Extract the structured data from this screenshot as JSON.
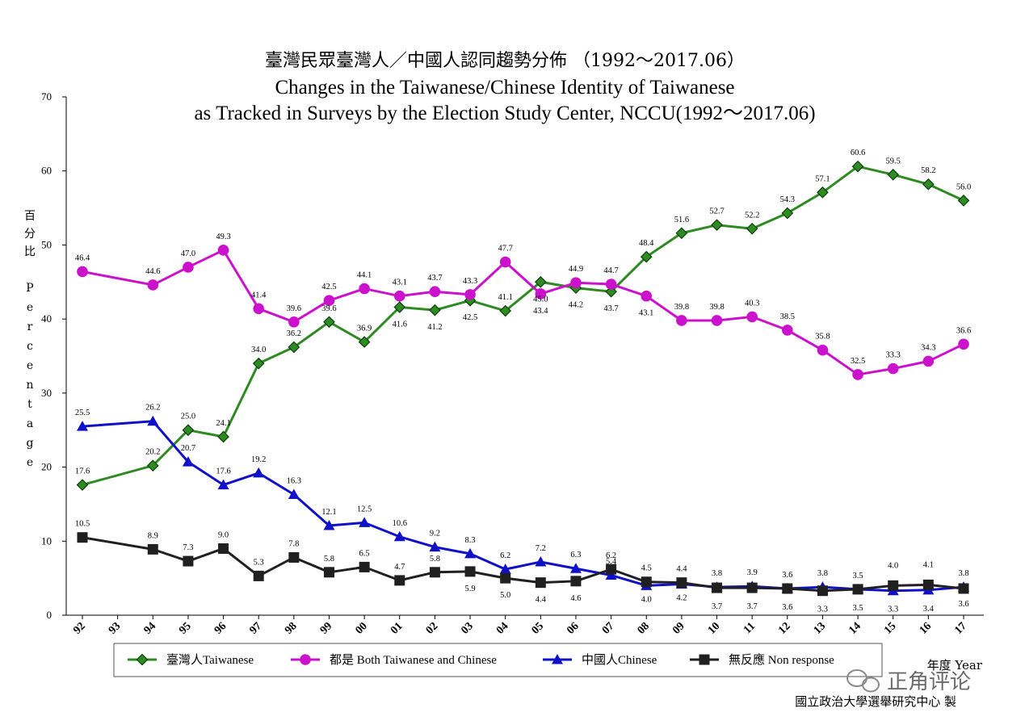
{
  "chart_data": {
    "type": "line",
    "title_zh": "臺灣民眾臺灣人／中國人認同趨勢分佈 （1992～2017.06）",
    "title_en_line1": "Changes in the Taiwanese/Chinese Identity of Taiwanese",
    "title_en_line2": "as Tracked in Surveys by the Election Study Center, NCCU(1992～2017.06)",
    "ylabel_zh": "百分比",
    "ylabel_en": "Percentage",
    "xlabel": "年度 Year",
    "ylim": [
      0,
      70
    ],
    "yticks": [
      0,
      10,
      20,
      30,
      40,
      50,
      60,
      70
    ],
    "categories": [
      "92",
      "93",
      "94",
      "95",
      "96",
      "97",
      "98",
      "99",
      "00",
      "01",
      "02",
      "03",
      "04",
      "05",
      "06",
      "07",
      "08",
      "09",
      "10",
      "11",
      "12",
      "13",
      "14",
      "15",
      "16",
      "17"
    ],
    "grid": false,
    "legend_position": "bottom",
    "series": [
      {
        "name": "臺灣人Taiwanese",
        "color": "#2e8b22",
        "marker": "diamond",
        "x": [
          "92",
          "94",
          "95",
          "96",
          "97",
          "98",
          "99",
          "00",
          "01",
          "02",
          "03",
          "04",
          "05",
          "06",
          "07",
          "08",
          "09",
          "10",
          "11",
          "12",
          "13",
          "14",
          "15",
          "16",
          "17"
        ],
        "values": [
          17.6,
          20.2,
          25.0,
          24.1,
          34.0,
          36.2,
          39.6,
          36.9,
          41.6,
          41.2,
          42.5,
          41.1,
          45.0,
          44.2,
          43.7,
          48.4,
          51.6,
          52.7,
          52.2,
          54.3,
          57.1,
          60.6,
          59.5,
          58.2,
          56.0
        ]
      },
      {
        "name": "都是 Both Taiwanese and Chinese",
        "color": "#cc11cc",
        "marker": "circle",
        "x": [
          "92",
          "94",
          "95",
          "96",
          "97",
          "98",
          "99",
          "00",
          "01",
          "02",
          "03",
          "04",
          "05",
          "06",
          "07",
          "08",
          "09",
          "10",
          "11",
          "12",
          "13",
          "14",
          "15",
          "16",
          "17"
        ],
        "values": [
          46.4,
          44.6,
          47.0,
          49.3,
          41.4,
          39.6,
          42.5,
          44.1,
          43.1,
          43.7,
          43.3,
          47.7,
          43.4,
          44.9,
          44.7,
          43.1,
          39.8,
          39.8,
          40.3,
          38.5,
          35.8,
          32.5,
          33.3,
          34.3,
          36.6
        ]
      },
      {
        "name": "中國人Chinese",
        "color": "#1010c8",
        "marker": "triangle",
        "x": [
          "92",
          "94",
          "95",
          "96",
          "97",
          "98",
          "99",
          "00",
          "01",
          "02",
          "03",
          "04",
          "05",
          "06",
          "07",
          "08",
          "09",
          "10",
          "11",
          "12",
          "13",
          "14",
          "15",
          "16",
          "17"
        ],
        "values": [
          25.5,
          26.2,
          20.7,
          17.6,
          19.2,
          16.3,
          12.1,
          12.5,
          10.6,
          9.2,
          8.3,
          6.2,
          7.2,
          6.3,
          5.4,
          4.0,
          4.2,
          3.8,
          3.9,
          3.6,
          3.8,
          3.5,
          3.3,
          3.4,
          3.8
        ]
      },
      {
        "name": "無反應 Non response",
        "color": "#202020",
        "marker": "square",
        "x": [
          "92",
          "94",
          "95",
          "96",
          "97",
          "98",
          "99",
          "00",
          "01",
          "02",
          "03",
          "04",
          "05",
          "06",
          "07",
          "08",
          "09",
          "10",
          "11",
          "12",
          "13",
          "14",
          "15",
          "16",
          "17"
        ],
        "values": [
          10.5,
          8.9,
          7.3,
          9.0,
          5.3,
          7.8,
          5.8,
          6.5,
          4.7,
          5.8,
          5.9,
          5.0,
          4.4,
          4.6,
          6.2,
          4.5,
          4.4,
          3.7,
          3.7,
          3.6,
          3.3,
          3.5,
          4.0,
          4.1,
          3.6
        ]
      }
    ]
  },
  "credit": "國立政治大學選舉研究中心 製",
  "watermark": "正角评论"
}
